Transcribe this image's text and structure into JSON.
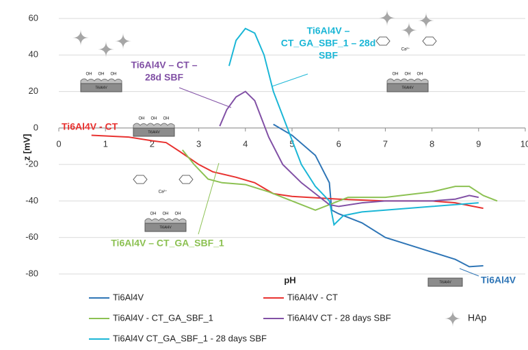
{
  "chart_data": {
    "type": "line",
    "x_label": "pH",
    "y_label": "z [mV]",
    "xlim": [
      0,
      10
    ],
    "xticks": [
      0,
      1,
      2,
      3,
      4,
      5,
      6,
      7,
      8,
      9,
      10
    ],
    "ylim": [
      -80,
      60
    ],
    "yticks": [
      -80,
      -60,
      -40,
      -20,
      0,
      20,
      40,
      60
    ],
    "grid": true,
    "series": [
      {
        "name": "Ti6Al4V",
        "color": "#2e75b6",
        "x": [
          4.6,
          5.0,
          5.5,
          5.8,
          5.85,
          6.0,
          6.5,
          7.0,
          8.0,
          8.5,
          8.8,
          9.1
        ],
        "values": [
          2,
          -4,
          -15,
          -30,
          -45,
          -47,
          -52,
          -60,
          -68,
          -72,
          -76,
          -75.5
        ]
      },
      {
        "name": "Ti6Al4V - CT",
        "color": "#e8312f",
        "x": [
          0.7,
          1.5,
          2.0,
          2.3,
          2.6,
          3.0,
          3.3,
          3.8,
          4.2,
          4.6,
          5.0,
          6.0,
          7.0,
          8.0,
          8.5,
          9.1
        ],
        "values": [
          -4,
          -5,
          -7,
          -8,
          -13,
          -20,
          -24,
          -27,
          -30,
          -36,
          -37.5,
          -39,
          -40,
          -40,
          -41,
          -44
        ]
      },
      {
        "name": "Ti6Al4V - CT_GA_SBF_1",
        "color": "#8cc152",
        "x": [
          2.65,
          2.9,
          3.2,
          3.5,
          4.0,
          4.5,
          5.0,
          5.5,
          5.8,
          6.2,
          7.0,
          8.0,
          8.5,
          8.8,
          9.1,
          9.4
        ],
        "values": [
          -12,
          -20,
          -28,
          -30,
          -31,
          -35,
          -40,
          -45,
          -42,
          -38,
          -38,
          -35,
          -32,
          -32,
          -37,
          -40
        ]
      },
      {
        "name": "Ti6Al4V CT - 28 days SBF",
        "color": "#8150a5",
        "x": [
          3.45,
          3.6,
          3.8,
          4.0,
          4.2,
          4.5,
          4.8,
          5.2,
          5.5,
          5.8,
          6.0,
          6.5,
          7.0,
          8.0,
          8.5,
          8.8,
          9.0
        ],
        "values": [
          1,
          10,
          17,
          20,
          15,
          -5,
          -20,
          -30,
          -36,
          -42,
          -43,
          -41,
          -40,
          -40,
          -39,
          -37,
          -38
        ]
      },
      {
        "name": "Ti6Al4V CT_GA_SBF_1 - 28 days SBF",
        "color": "#1ab6d6",
        "x": [
          3.65,
          3.8,
          4.0,
          4.2,
          4.4,
          4.6,
          4.9,
          5.2,
          5.5,
          5.8,
          5.9,
          6.1,
          6.5,
          7.0,
          8.0,
          9.0
        ],
        "values": [
          34,
          48,
          54.5,
          52,
          40,
          20,
          0,
          -20,
          -32,
          -40,
          -53,
          -48,
          -46,
          -45,
          -43,
          -41
        ]
      }
    ],
    "annotations": [
      {
        "lines": [
          "Ti6Al4V - CT"
        ],
        "color": "#e8312f"
      },
      {
        "lines": [
          "Ti6Al4V – CT –",
          "28d SBF"
        ],
        "color": "#8150a5"
      },
      {
        "lines": [
          "Ti6Al4V –",
          "CT_GA_SBF_1 – 28d",
          "SBF"
        ],
        "color": "#1ab6d6"
      },
      {
        "lines": [
          "Ti6Al4V – CT_GA_SBF_1"
        ],
        "color": "#8cc152"
      },
      {
        "lines": [
          "Ti6Al4V"
        ],
        "color": "#2e75b6"
      }
    ],
    "legend_extra": "HAp",
    "surface_labels": {
      "oh": "OH",
      "substrate": "Ti6Al4V",
      "ion": "Ca²⁺"
    }
  }
}
